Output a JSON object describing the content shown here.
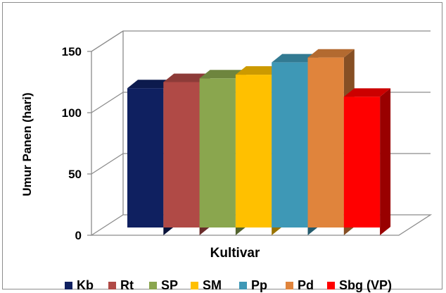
{
  "chart_data": {
    "type": "bar",
    "style": "3d-clustered-column",
    "title": "",
    "xlabel": "Kultivar",
    "ylabel": "Umur Panen (hari)",
    "ylim": [
      0,
      150
    ],
    "yticks": [
      0,
      50,
      100,
      150
    ],
    "grid": true,
    "legend_position": "bottom",
    "categories": [
      ""
    ],
    "series": [
      {
        "name": "Kb",
        "values": [
          120
        ],
        "color": "#0f2060"
      },
      {
        "name": "Rt",
        "values": [
          125
        ],
        "color": "#b04a46"
      },
      {
        "name": "SP",
        "values": [
          128
        ],
        "color": "#8aa64e"
      },
      {
        "name": "SM",
        "values": [
          131
        ],
        "color": "#ffc000"
      },
      {
        "name": "Pp",
        "values": [
          141
        ],
        "color": "#3e98b6"
      },
      {
        "name": "Pd",
        "values": [
          145
        ],
        "color": "#e0843c"
      },
      {
        "name": "Sbg (VP)",
        "values": [
          113
        ],
        "color": "#ff0000"
      }
    ]
  }
}
